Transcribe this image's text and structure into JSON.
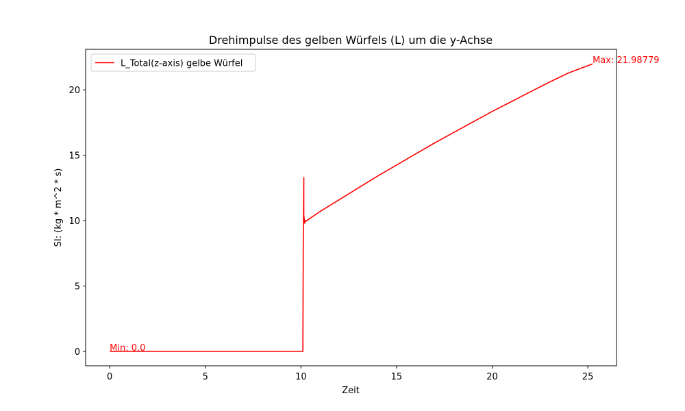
{
  "chart_data": {
    "type": "line",
    "title": "Drehimpulse des gelben Würfels (L) um die y-Achse",
    "xlabel": "Zeit",
    "ylabel": "SI: (kg * m^2 * s)",
    "xlim": [
      -1.26,
      26.5
    ],
    "ylim": [
      -1.1,
      23.1
    ],
    "xticks": [
      0,
      5,
      10,
      15,
      20,
      25
    ],
    "yticks": [
      0,
      5,
      10,
      15,
      20
    ],
    "grid": false,
    "legend": "top-left",
    "series": [
      {
        "name": "L_Total(z-axis) gelbe Würfel",
        "color": "#ff0000",
        "x": [
          0,
          2,
          4,
          6,
          8,
          10,
          10.1,
          10.12,
          10.15,
          10.15,
          10.18,
          10.2,
          10.22,
          10.25,
          10.3,
          11,
          12,
          13,
          14,
          15,
          16,
          17,
          18,
          19,
          20,
          21,
          22,
          23,
          24,
          25.25
        ],
        "y": [
          0,
          0,
          0,
          0,
          0,
          0,
          0,
          8.0,
          13.3,
          10.4,
          10.0,
          9.8,
          10.0,
          9.95,
          10.0,
          10.7,
          11.6,
          12.5,
          13.4,
          14.25,
          15.1,
          15.95,
          16.75,
          17.55,
          18.35,
          19.1,
          19.85,
          20.6,
          21.3,
          21.98779
        ]
      }
    ],
    "annotations": [
      {
        "text": "Min: 0.0",
        "x": 0,
        "y": 0,
        "color": "#ff0000"
      },
      {
        "text": "Max: 21.98779",
        "x": 25.25,
        "y": 21.98779,
        "color": "#ff0000"
      }
    ]
  }
}
